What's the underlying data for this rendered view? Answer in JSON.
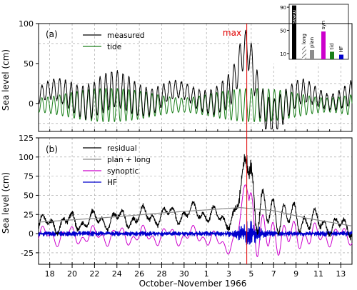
{
  "figure": {
    "xlabel": "October–November 1966",
    "x_tick_labels": [
      "18",
      "20",
      "22",
      "24",
      "26",
      "28",
      "30",
      "1",
      "3",
      "5",
      "7",
      "9",
      "11",
      "13"
    ],
    "event_label": "max",
    "colors": {
      "measured": "#000000",
      "tide": "#1a7f1a",
      "residual": "#000000",
      "plan_long": "#8c8c8c",
      "synoptic": "#cc00cc",
      "hf": "#0000cc",
      "event": "#e00000"
    }
  },
  "chart_data": [
    {
      "panel_label": "(a)",
      "type": "line",
      "ylabel": "Sea level (cm)",
      "ylim": [
        -35,
        100
      ],
      "yticks": [
        0,
        50,
        100
      ],
      "xlim": [
        17,
        45
      ],
      "x_unit": "day count from October (Oct 17 = 17, Nov 1 = 32)",
      "event_x": 35.6,
      "grid": true,
      "legend_position": "top-left",
      "series": [
        {
          "name": "measured",
          "approx_envelope": {
            "baseline": 12,
            "tidal_amplitude": 22,
            "peak": 94,
            "peak_x": 35.6,
            "min": -30
          }
        },
        {
          "name": "tide",
          "approx_envelope": {
            "mean": -2,
            "amplitude": 20,
            "period_days": 0.52
          }
        }
      ]
    },
    {
      "panel_label": "(b)",
      "type": "line",
      "ylabel": "Sea level (cm)",
      "ylim": [
        -40,
        125
      ],
      "yticks": [
        -25,
        0,
        25,
        50,
        75,
        100,
        125
      ],
      "xlim": [
        17,
        45
      ],
      "event_x": 35.6,
      "grid": true,
      "legend_position": "top-left",
      "series": [
        {
          "name": "residual",
          "approx_envelope": {
            "baseline": 25,
            "peak": 112,
            "peak_x": 35.7
          }
        },
        {
          "name": "plan + long",
          "points": [
            [
              17,
              15
            ],
            [
              20,
              18
            ],
            [
              24,
              22
            ],
            [
              28,
              27
            ],
            [
              32,
              31
            ],
            [
              35,
              34
            ],
            [
              38,
              30
            ],
            [
              41,
              20
            ],
            [
              45,
              10
            ]
          ]
        },
        {
          "name": "synoptic",
          "approx_envelope": {
            "min": -35,
            "max": 68,
            "peak_x": 35.6
          }
        },
        {
          "name": "HF",
          "approx_envelope": {
            "amplitude": 5,
            "burst_amplitude": 16,
            "burst_x": 35.6
          }
        }
      ]
    },
    {
      "panel_label": "inset",
      "type": "bar",
      "categories": [
        "meas",
        "long",
        "plan",
        "syn",
        "tid",
        "HF"
      ],
      "values": [
        93,
        22,
        16,
        48,
        13,
        8
      ],
      "ylim": [
        0,
        95
      ],
      "yticks": [
        10,
        50,
        90
      ],
      "hatched": [
        false,
        true,
        false,
        false,
        false,
        false
      ],
      "bar_colors": [
        "#000000",
        "#9a9a9a",
        "#8c8c8c",
        "#cc00cc",
        "#1a7f1a",
        "#0000cc"
      ]
    }
  ],
  "legend_a": [
    "measured",
    "tide"
  ],
  "legend_b": [
    "residual",
    "plan + long",
    "synoptic",
    "HF"
  ]
}
